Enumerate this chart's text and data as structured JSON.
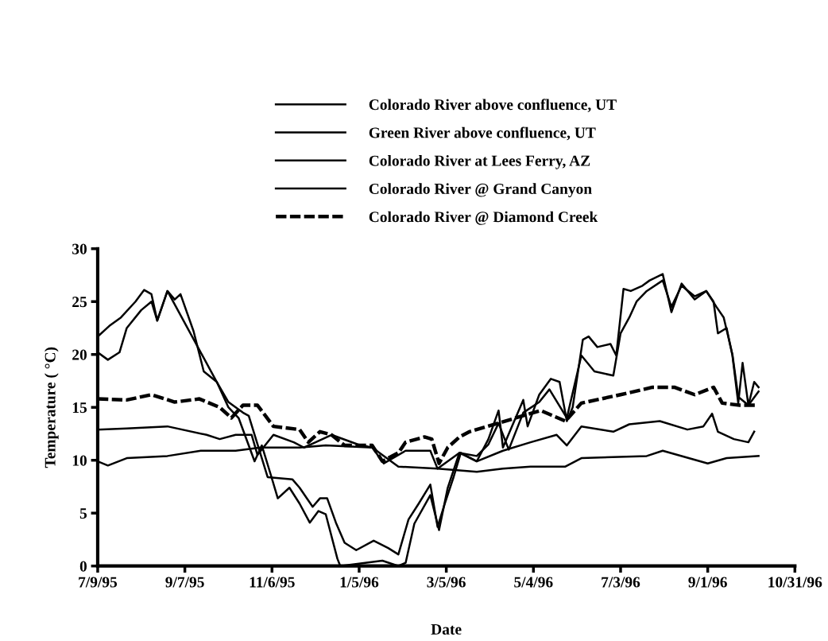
{
  "chart_data": {
    "type": "line",
    "xlabel": "Date",
    "ylabel": "Temperature ( °C)",
    "xlim": [
      "1995-07-09",
      "1996-10-31"
    ],
    "xticks": [
      {
        "value": "1995-07-09",
        "label": "7/9/95"
      },
      {
        "value": "1995-09-07",
        "label": "9/7/95"
      },
      {
        "value": "1995-11-06",
        "label": "11/6/95"
      },
      {
        "value": "1996-01-05",
        "label": "1/5/96"
      },
      {
        "value": "1996-03-05",
        "label": "3/5/96"
      },
      {
        "value": "1996-05-04",
        "label": "5/4/96"
      },
      {
        "value": "1996-07-03",
        "label": "7/3/96"
      },
      {
        "value": "1996-09-01",
        "label": "9/1/96"
      },
      {
        "value": "1996-10-31",
        "label": "10/31/96"
      }
    ],
    "ylim": [
      0,
      30
    ],
    "yticks": [
      0,
      5,
      10,
      15,
      20,
      25,
      30
    ],
    "grid": false,
    "legend": "top",
    "marker": "none",
    "series": [
      {
        "name": "Colorado River above confluence, UT",
        "color": "#000000",
        "line_style": "solid",
        "x": [
          "1995-07-09",
          "1995-07-17",
          "1995-07-25",
          "1995-08-04",
          "1995-08-10",
          "1995-08-15",
          "1995-08-19",
          "1995-08-26",
          "1995-09-29",
          "1995-10-07",
          "1995-10-17",
          "1995-10-21",
          "1995-11-03",
          "1995-11-20",
          "1995-11-25",
          "1995-12-04",
          "1995-12-09",
          "1995-12-14",
          "1995-12-20",
          "1995-12-26",
          "1996-01-03",
          "1996-01-15",
          "1996-01-25",
          "1996-02-01",
          "1996-02-08",
          "1996-02-15",
          "1996-02-23",
          "1996-02-28",
          "1996-03-04",
          "1996-03-10",
          "1996-03-15",
          "1996-03-26",
          "1996-04-03",
          "1996-04-10",
          "1996-04-13",
          "1996-04-27",
          "1996-04-30",
          "1996-05-08",
          "1996-05-16",
          "1996-05-22",
          "1996-05-27",
          "1996-05-31",
          "1996-06-07",
          "1996-06-11",
          "1996-06-17",
          "1996-06-26",
          "1996-06-30",
          "1996-07-05",
          "1996-07-10",
          "1996-07-18",
          "1996-07-23",
          "1996-08-01",
          "1996-08-07",
          "1996-08-14",
          "1996-08-23",
          "1996-08-31",
          "1996-09-05",
          "1996-09-08",
          "1996-09-14",
          "1996-09-18",
          "1996-09-22",
          "1996-09-25",
          "1996-09-29",
          "1996-10-03",
          "1996-10-06"
        ],
        "values": [
          21.7,
          22.7,
          23.5,
          25,
          26.1,
          25.7,
          23.2,
          26,
          17.4,
          15.5,
          14.5,
          14.2,
          8.4,
          8.2,
          7.4,
          5.6,
          6.4,
          6.4,
          4.1,
          2.2,
          1.5,
          2.4,
          1.7,
          1.1,
          4.4,
          5.9,
          7.7,
          3.7,
          5.9,
          8.4,
          10.7,
          9.9,
          12,
          14.7,
          11.2,
          15.7,
          13.2,
          16.2,
          17.7,
          17.4,
          13.7,
          15,
          21.4,
          21.7,
          20.7,
          21,
          19.9,
          26.2,
          26,
          26.5,
          27,
          27.6,
          24,
          26.7,
          25.2,
          26,
          25,
          22,
          22.5,
          19.9,
          15.4,
          19.2,
          15.2,
          17.4,
          16.9
        ]
      },
      {
        "name": "Green River above confluence, UT",
        "color": "#000000",
        "line_style": "solid",
        "x": [
          "1995-07-09",
          "1995-07-16",
          "1995-07-24",
          "1995-07-29",
          "1995-08-08",
          "1995-08-15",
          "1995-08-19",
          "1995-08-26",
          "1995-08-31",
          "1995-09-04",
          "1995-09-13",
          "1995-09-20",
          "1995-09-29",
          "1995-10-07",
          "1995-10-14",
          "1995-10-25",
          "1995-10-30",
          "1995-11-05",
          "1995-11-10",
          "1995-11-18",
          "1995-11-25",
          "1995-12-02",
          "1995-12-08",
          "1995-12-13",
          "1995-12-21",
          "1995-12-23",
          "1996-01-21",
          "1996-02-01",
          "1996-02-06",
          "1996-02-12",
          "1996-02-23",
          "1996-02-29",
          "1996-03-06",
          "1996-03-14",
          "1996-03-26",
          "1996-04-03",
          "1996-04-10",
          "1996-04-17",
          "1996-04-27",
          "1996-05-08",
          "1996-05-15",
          "1996-05-27",
          "1996-06-06",
          "1996-06-15",
          "1996-06-28",
          "1996-07-03",
          "1996-07-09",
          "1996-07-14",
          "1996-07-21",
          "1996-08-01",
          "1996-08-07",
          "1996-08-14",
          "1996-08-23",
          "1996-08-31",
          "1996-09-07",
          "1996-09-12",
          "1996-09-18",
          "1996-09-22",
          "1996-09-29",
          "1996-10-06"
        ],
        "values": [
          20.2,
          19.5,
          20.2,
          22.5,
          24.2,
          25,
          23.2,
          26,
          25.2,
          25.7,
          22.2,
          18.4,
          17.4,
          15,
          14,
          9.9,
          11.4,
          8.7,
          6.4,
          7.4,
          5.9,
          4.1,
          5.2,
          4.9,
          0.7,
          0,
          0.5,
          0,
          0.3,
          4,
          6.7,
          3.4,
          7.4,
          10.7,
          10.4,
          11.5,
          13.5,
          11,
          14.5,
          15.5,
          16.7,
          14,
          19.9,
          18.4,
          18,
          22,
          23.5,
          25,
          26,
          27,
          24.5,
          26.5,
          25.5,
          26,
          24.5,
          23.5,
          20,
          16,
          15.2,
          16.5
        ]
      },
      {
        "name": "Colorado River at Lees Ferry, AZ",
        "color": "#000000",
        "line_style": "solid",
        "x": [
          "1995-07-09",
          "1995-07-16",
          "1995-07-29",
          "1995-08-26",
          "1995-09-18",
          "1995-10-12",
          "1995-10-29",
          "1995-11-25",
          "1995-12-13",
          "1996-01-14",
          "1996-02-01",
          "1996-02-28",
          "1996-03-26",
          "1996-04-13",
          "1996-05-02",
          "1996-05-26",
          "1996-06-06",
          "1996-07-21",
          "1996-08-01",
          "1996-09-01",
          "1996-09-14",
          "1996-10-06"
        ],
        "values": [
          9.9,
          9.5,
          10.2,
          10.4,
          10.9,
          10.9,
          11.2,
          11.2,
          11.4,
          11.2,
          9.4,
          9.2,
          8.9,
          9.2,
          9.4,
          9.4,
          10.2,
          10.4,
          10.9,
          9.7,
          10.2,
          10.4
        ]
      },
      {
        "name": "Colorado River @ Grand Canyon",
        "color": "#000000",
        "line_style": "solid",
        "x": [
          "1995-07-09",
          "1995-07-29",
          "1995-08-26",
          "1995-09-22",
          "1995-10-01",
          "1995-10-12",
          "1995-10-23",
          "1995-10-27",
          "1995-11-07",
          "1995-11-21",
          "1995-11-28",
          "1995-12-06",
          "1995-12-17",
          "1996-01-04",
          "1996-01-14",
          "1996-01-22",
          "1996-02-06",
          "1996-02-23",
          "1996-02-28",
          "1996-03-14",
          "1996-03-26",
          "1996-04-13",
          "1996-05-02",
          "1996-05-20",
          "1996-05-27",
          "1996-06-06",
          "1996-06-28",
          "1996-07-09",
          "1996-07-30",
          "1996-08-18",
          "1996-08-29",
          "1996-09-04",
          "1996-09-08",
          "1996-09-19",
          "1996-09-29",
          "1996-10-03"
        ],
        "values": [
          12.9,
          13,
          13.2,
          12.4,
          12,
          12.4,
          12.4,
          10.5,
          12.4,
          11.7,
          11.2,
          11.7,
          12.4,
          11.5,
          11.2,
          9.7,
          10.9,
          10.9,
          9.2,
          10.7,
          9.9,
          10.9,
          11.7,
          12.4,
          11.4,
          13.2,
          12.7,
          13.4,
          13.7,
          12.9,
          13.2,
          14.4,
          12.7,
          12,
          11.7,
          12.7
        ]
      },
      {
        "name": "Colorado River @ Diamond Creek",
        "color": "#000000",
        "line_style": "dashed",
        "x": [
          "1995-07-09",
          "1995-07-29",
          "1995-08-15",
          "1995-08-31",
          "1995-09-17",
          "1995-10-01",
          "1995-10-09",
          "1995-10-17",
          "1995-10-27",
          "1995-11-07",
          "1995-11-25",
          "1995-12-01",
          "1995-12-09",
          "1995-12-17",
          "1995-12-26",
          "1996-01-14",
          "1996-01-21",
          "1996-02-01",
          "1996-02-06",
          "1996-02-19",
          "1996-02-24",
          "1996-02-29",
          "1996-03-06",
          "1996-03-14",
          "1996-03-21",
          "1996-05-09",
          "1996-05-26",
          "1996-06-06",
          "1996-07-03",
          "1996-07-25",
          "1996-08-09",
          "1996-08-23",
          "1996-09-05",
          "1996-09-11",
          "1996-09-23",
          "1996-10-04"
        ],
        "values": [
          15.8,
          15.7,
          16.2,
          15.5,
          15.8,
          15,
          14,
          15.2,
          15.2,
          13.2,
          12.9,
          11.7,
          12.7,
          12.4,
          11.4,
          11.4,
          9.9,
          10.7,
          11.7,
          12.2,
          12,
          9.7,
          11.2,
          12.2,
          12.7,
          14.7,
          13.7,
          15.4,
          16.2,
          16.9,
          16.9,
          16.2,
          16.9,
          15.4,
          15.2,
          15.2
        ]
      }
    ]
  }
}
